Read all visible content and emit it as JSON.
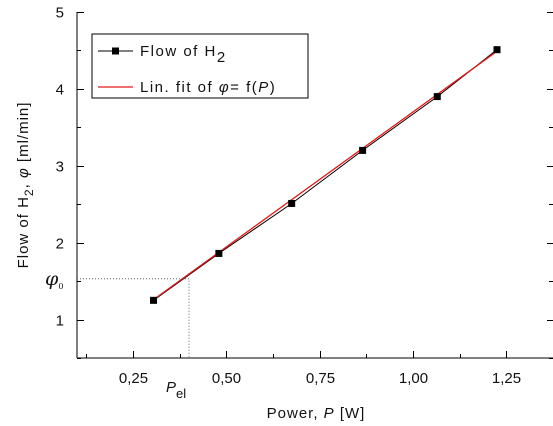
{
  "chart_data": {
    "type": "line",
    "xlabel_main": "Power, ",
    "xlabel_var": "P",
    "xlabel_unit": " [W]",
    "ylabel_prefix": "Flow of H",
    "ylabel_sub": "2",
    "ylabel_mid": ", ",
    "ylabel_var": "φ",
    "ylabel_unit": " [ml/min]",
    "xlim": [
      0.1,
      1.375
    ],
    "ylim": [
      0.5,
      5
    ],
    "x_ticks": [
      0.25,
      0.5,
      0.75,
      1.0,
      1.25
    ],
    "x_tick_labels": [
      "0,25",
      "0,50",
      "0,75",
      "1,00",
      "1,25"
    ],
    "y_ticks": [
      1,
      2,
      3,
      4,
      5
    ],
    "y_tick_labels": [
      "1",
      "2",
      "3",
      "4",
      "5"
    ],
    "grid": false,
    "legend_position": "top-left",
    "series": [
      {
        "name_prefix": "Flow of H",
        "name_sub": "2",
        "marker": "square",
        "color": "#000000",
        "x": [
          0.305,
          0.48,
          0.675,
          0.865,
          1.065,
          1.225
        ],
        "y": [
          1.25,
          1.86,
          2.51,
          3.2,
          3.9,
          4.51
        ]
      },
      {
        "name_prefix": "Lin. fit of ",
        "name_var1": "φ",
        "name_mid": "= f(",
        "name_var2": "P",
        "name_suffix": ")",
        "color": "#e41a1c",
        "x": [
          0.305,
          1.225
        ],
        "y": [
          1.26,
          4.49
        ]
      }
    ],
    "annotations": {
      "phi0_label": "φ",
      "phi0_sub": "0",
      "phi0_value": 1.53,
      "pel_label": "P",
      "pel_sub": "el",
      "pel_value": 0.4
    }
  }
}
